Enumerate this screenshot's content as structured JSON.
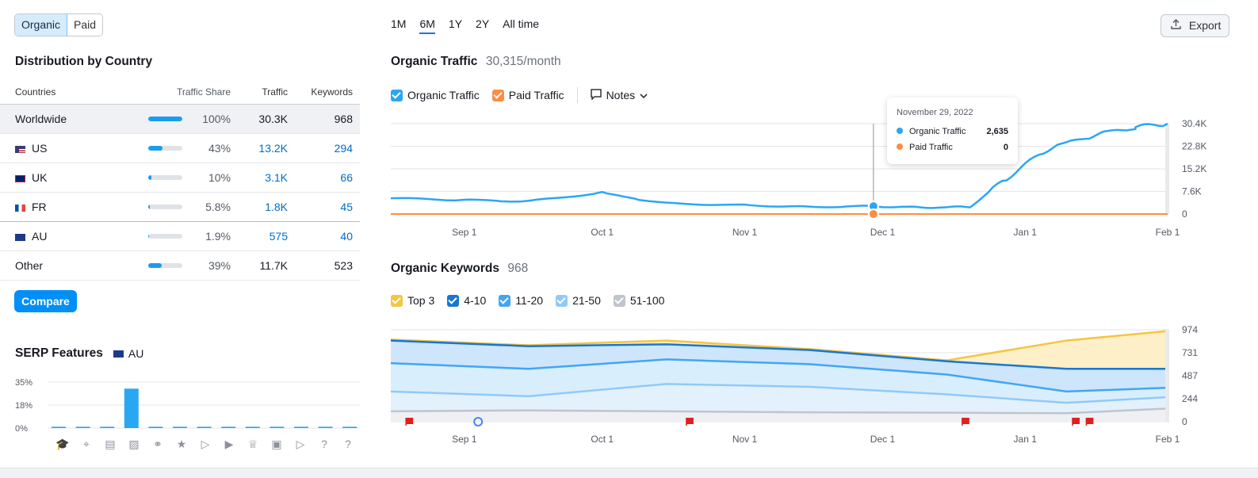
{
  "toggle": {
    "organic": "Organic",
    "paid": "Paid"
  },
  "distribution": {
    "title": "Distribution by Country",
    "columns": {
      "countries": "Countries",
      "share": "Traffic Share",
      "traffic": "Traffic",
      "keywords": "Keywords"
    },
    "rows": [
      {
        "name": "Worldwide",
        "flag": "",
        "share": "100%",
        "share_fraction": 1.0,
        "traffic": "30.3K",
        "keywords": "968"
      },
      {
        "name": "US",
        "flag": "us",
        "share": "43%",
        "share_fraction": 0.43,
        "traffic": "13.2K",
        "keywords": "294"
      },
      {
        "name": "UK",
        "flag": "uk",
        "share": "10%",
        "share_fraction": 0.1,
        "traffic": "3.1K",
        "keywords": "66"
      },
      {
        "name": "FR",
        "flag": "fr",
        "share": "5.8%",
        "share_fraction": 0.058,
        "traffic": "1.8K",
        "keywords": "45"
      },
      {
        "name": "AU",
        "flag": "au",
        "share": "1.9%",
        "share_fraction": 0.019,
        "traffic": "575",
        "keywords": "40"
      },
      {
        "name": "Other",
        "flag": "",
        "share": "39%",
        "share_fraction": 0.39,
        "traffic": "11.7K",
        "keywords": "523"
      }
    ],
    "compare": "Compare"
  },
  "serp": {
    "title": "SERP Features",
    "country": "AU",
    "y_ticks": [
      "35%",
      "18%",
      "0%"
    ],
    "values": [
      1,
      1,
      1,
      30,
      1,
      1,
      1,
      1,
      1,
      1,
      1,
      1,
      1
    ],
    "icons": [
      "graduation-cap-icon",
      "location-pin-icon",
      "news-icon",
      "image-pack-icon",
      "link-icon",
      "star-icon",
      "video-icon",
      "video-carousel-icon",
      "crown-icon",
      "image-icon",
      "play-icon",
      "question-icon",
      "help-icon"
    ]
  },
  "periods": [
    "1M",
    "6M",
    "1Y",
    "2Y",
    "All time"
  ],
  "active_period": "6M",
  "export": "Export",
  "traffic": {
    "title": "Organic Traffic",
    "value": "30,315/month",
    "legend": {
      "organic": "Organic Traffic",
      "paid": "Paid Traffic",
      "notes": "Notes"
    },
    "y_ticks": [
      "30.4K",
      "22.8K",
      "15.2K",
      "7.6K",
      "0"
    ],
    "x_ticks": [
      "Sep 1",
      "Oct 1",
      "Nov 1",
      "Dec 1",
      "Jan 1",
      "Feb 1"
    ],
    "tooltip": {
      "date": "November 29, 2022",
      "organic_label": "Organic Traffic",
      "organic_value": "2,635",
      "paid_label": "Paid Traffic",
      "paid_value": "0"
    }
  },
  "keywords": {
    "title": "Organic Keywords",
    "value": "968",
    "legend": [
      "Top 3",
      "4-10",
      "11-20",
      "21-50",
      "51-100"
    ],
    "y_ticks": [
      "974",
      "731",
      "487",
      "244",
      "0"
    ],
    "x_ticks": [
      "Sep 1",
      "Oct 1",
      "Nov 1",
      "Dec 1",
      "Jan 1",
      "Feb 1"
    ]
  },
  "colors": {
    "accent": "#008ff8",
    "organic": "#2aa7f2",
    "paid": "#ff8c42",
    "top3": "#f4c542",
    "k4_10": "#1976d2",
    "k11_20": "#42a5f5",
    "k21_50": "#90caf9",
    "k51_100": "#c0c4cc",
    "note_flag": "#e02020"
  },
  "chart_data": [
    {
      "type": "line",
      "title": "Organic Traffic",
      "x_range": [
        "2022-08-16",
        "2023-02-01"
      ],
      "ylim": [
        0,
        30400
      ],
      "series": [
        {
          "name": "Organic Traffic",
          "x": [
            "2022-08-16",
            "2022-09-01",
            "2022-09-15",
            "2022-10-01",
            "2022-10-15",
            "2022-11-01",
            "2022-11-15",
            "2022-11-29",
            "2022-12-10",
            "2022-12-20",
            "2022-12-28",
            "2023-01-05",
            "2023-01-15",
            "2023-01-25",
            "2023-02-01"
          ],
          "values": [
            5300,
            4700,
            4300,
            7200,
            3600,
            3000,
            2400,
            2635,
            2200,
            2400,
            12000,
            21000,
            26000,
            29000,
            30400
          ]
        },
        {
          "name": "Paid Traffic",
          "x": [
            "2022-08-16",
            "2023-02-01"
          ],
          "values": [
            0,
            0
          ]
        }
      ]
    },
    {
      "type": "area",
      "title": "Organic Keywords",
      "x_range": [
        "2022-08-16",
        "2023-02-01"
      ],
      "ylim": [
        0,
        974
      ],
      "series": [
        {
          "name": "Top 3",
          "x": [
            "2022-08-16",
            "2022-09-15",
            "2022-10-15",
            "2022-11-15",
            "2022-12-15",
            "2023-01-10",
            "2023-02-01"
          ],
          "values": [
            870,
            810,
            860,
            770,
            650,
            860,
            960
          ]
        },
        {
          "name": "4-10",
          "x": [
            "2022-08-16",
            "2022-09-15",
            "2022-10-15",
            "2022-11-15",
            "2022-12-15",
            "2023-01-10",
            "2023-02-01"
          ],
          "values": [
            860,
            800,
            820,
            760,
            640,
            560,
            560
          ]
        },
        {
          "name": "11-20",
          "x": [
            "2022-08-16",
            "2022-09-15",
            "2022-10-15",
            "2022-11-15",
            "2022-12-15",
            "2023-01-10",
            "2023-02-01"
          ],
          "values": [
            620,
            560,
            660,
            610,
            500,
            320,
            360
          ]
        },
        {
          "name": "21-50",
          "x": [
            "2022-08-16",
            "2022-09-15",
            "2022-10-15",
            "2022-11-15",
            "2022-12-15",
            "2023-01-10",
            "2023-02-01"
          ],
          "values": [
            320,
            270,
            400,
            370,
            290,
            200,
            260
          ]
        },
        {
          "name": "51-100",
          "x": [
            "2022-08-16",
            "2022-09-15",
            "2022-10-15",
            "2022-11-15",
            "2022-12-15",
            "2023-01-10",
            "2023-02-01"
          ],
          "values": [
            110,
            120,
            110,
            100,
            95,
            90,
            140
          ]
        }
      ]
    }
  ]
}
